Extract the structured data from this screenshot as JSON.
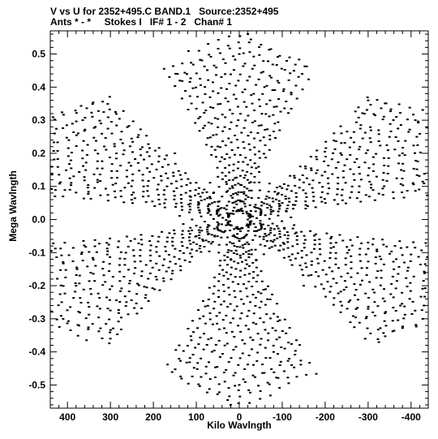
{
  "header": {
    "title_line1": "V vs U for 2352+495.C BAND.1   Source:2352+495",
    "title_line2": "Ants * - *     Stokes I   IF# 1 - 2   Chan# 1"
  },
  "chart_data": {
    "type": "scatter",
    "title": "V vs U for 2352+495.C BAND.1   Source:2352+495",
    "subtitle": "Ants * - *     Stokes I   IF# 1 - 2   Chan# 1",
    "xlabel": "Kilo Wavlngth",
    "ylabel": "Mega Wavlngth",
    "x_units": "kilo-wavelengths",
    "y_units": "mega-wavelengths",
    "xlim": [
      440,
      -440
    ],
    "ylim": [
      -0.57,
      0.57
    ],
    "x_ticks": [
      "400",
      "300",
      "200",
      "100",
      "0",
      "-100",
      "-200",
      "-300",
      "-400"
    ],
    "y_ticks": [
      "0.5",
      "0.4",
      "0.3",
      "0.2",
      "0.1",
      "0.0",
      "-0.1",
      "-0.2",
      "-0.3",
      "-0.4",
      "-0.5"
    ],
    "grid": false,
    "legend": "none",
    "marker_color": "#000000",
    "pattern": "six-armed uv coverage (snowflake), arms at approx 90, 150, 210, 270, 330, 30 degrees, radial extent up to ~0.56 M-lambda",
    "sampled_points": [
      {
        "u": -20,
        "v": 0.56
      },
      {
        "u": 20,
        "v": -0.56
      },
      {
        "u": 410,
        "v": -0.3
      },
      {
        "u": -410,
        "v": 0.3
      },
      {
        "u": 375,
        "v": 0.26
      },
      {
        "u": -375,
        "v": -0.26
      },
      {
        "u": 0,
        "v": 0.5
      },
      {
        "u": 0,
        "v": -0.5
      },
      {
        "u": 300,
        "v": -0.36
      },
      {
        "u": -300,
        "v": 0.36
      },
      {
        "u": 330,
        "v": 0.12
      },
      {
        "u": -330,
        "v": -0.12
      },
      {
        "u": -380,
        "v": 0.2
      },
      {
        "u": 380,
        "v": -0.2
      },
      {
        "u": 150,
        "v": 0.2
      },
      {
        "u": -150,
        "v": -0.2
      },
      {
        "u": 60,
        "v": 0.08
      },
      {
        "u": -60,
        "v": -0.08
      },
      {
        "u": 100,
        "v": -0.05
      },
      {
        "u": -100,
        "v": 0.05
      }
    ]
  }
}
